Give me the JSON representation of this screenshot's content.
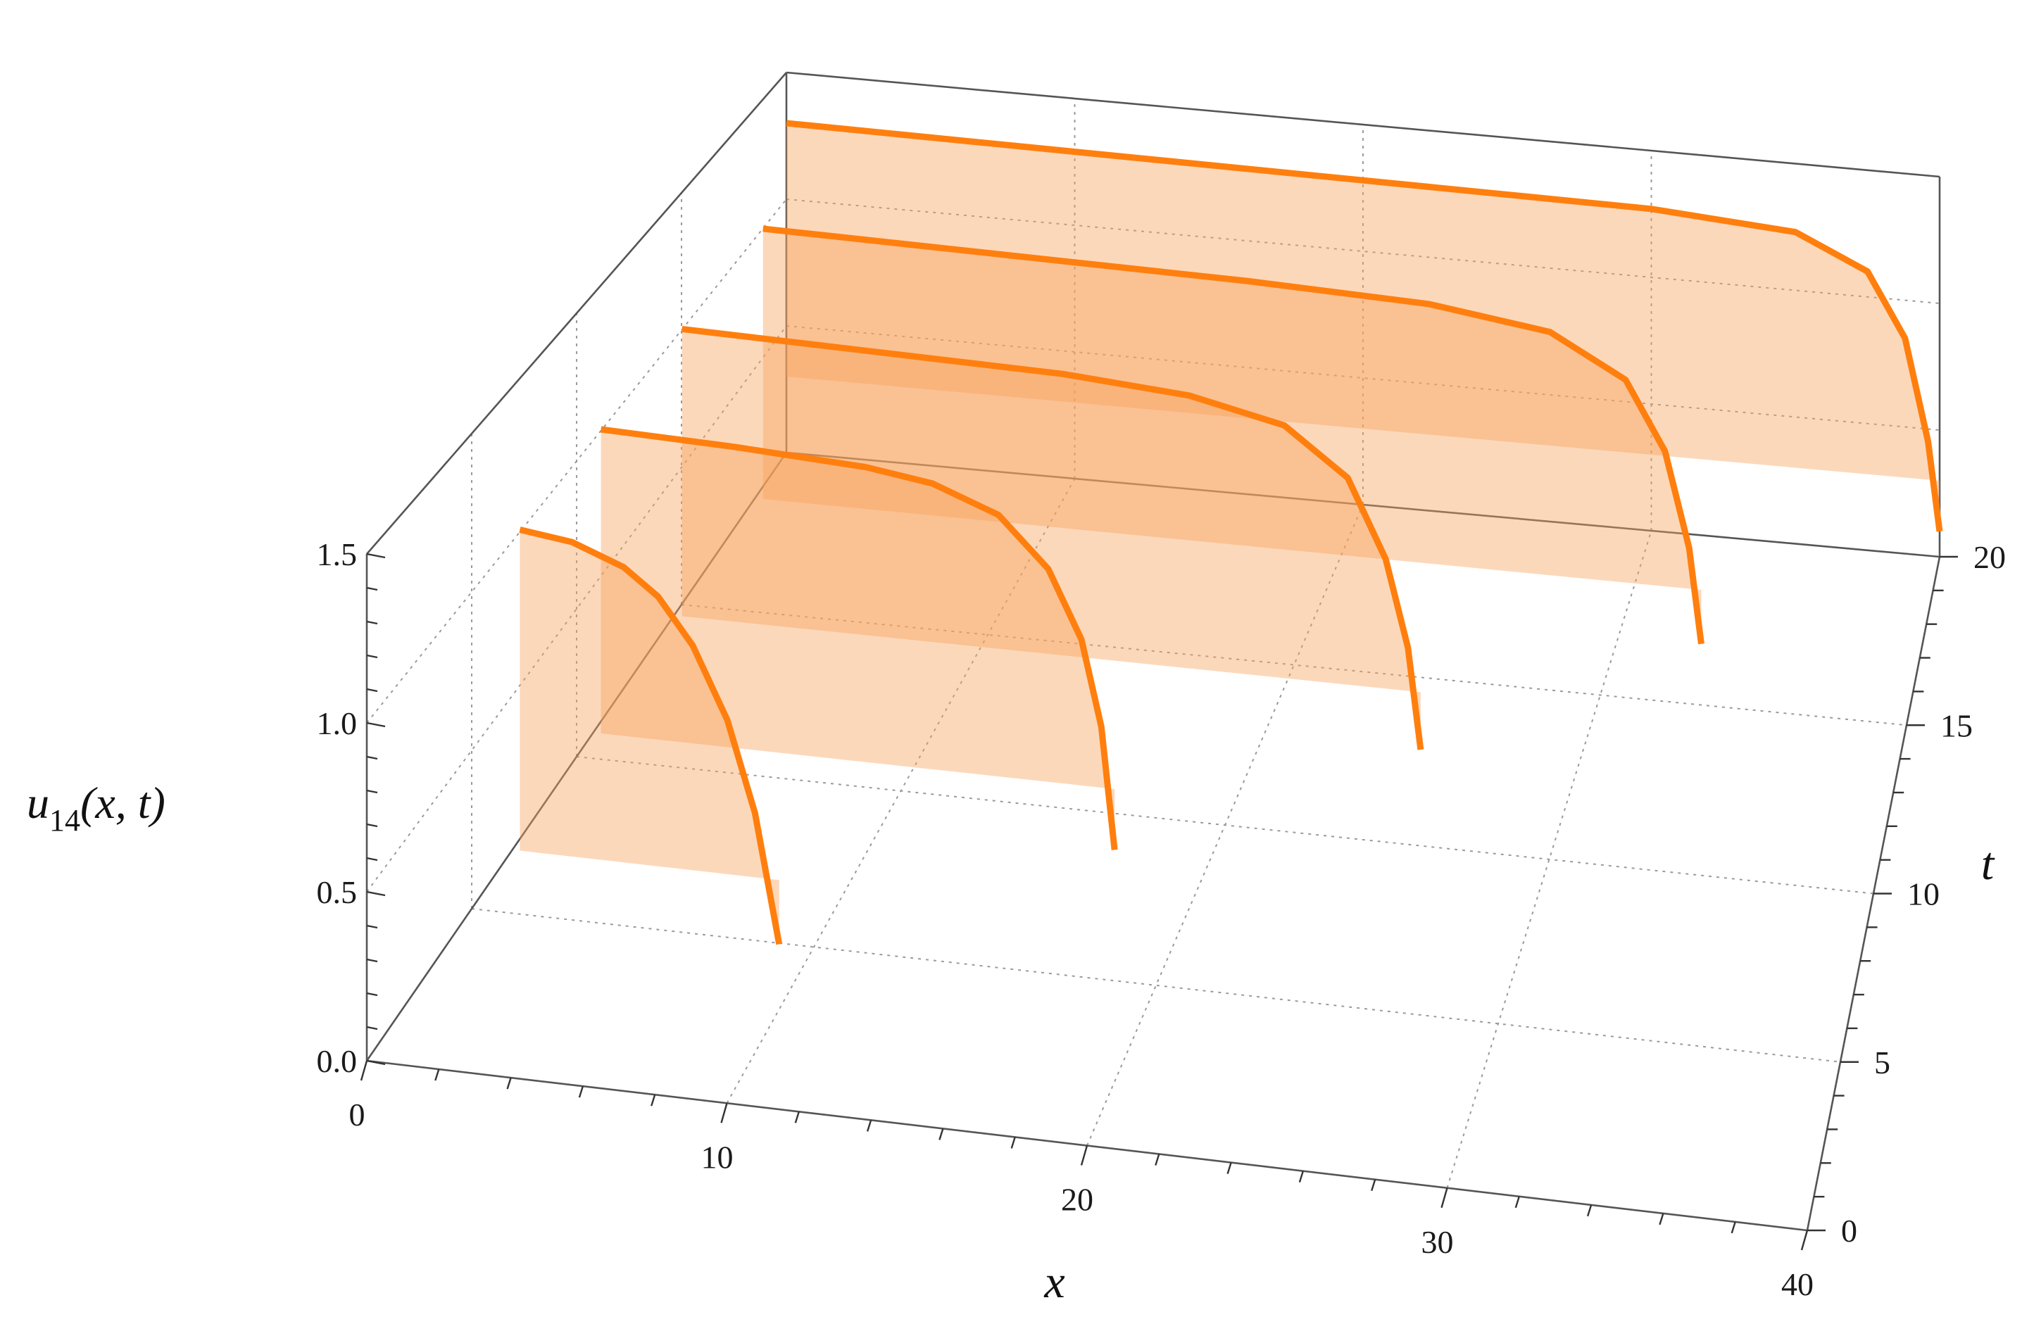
{
  "chart_data": {
    "type": "3d-line",
    "x_axis": {
      "label": "x",
      "range": [
        0,
        40
      ],
      "ticks": [
        "0",
        "10",
        "20",
        "30",
        "40"
      ]
    },
    "t_axis": {
      "label": "t",
      "range": [
        0,
        20
      ],
      "ticks": [
        "0",
        "5",
        "10",
        "15",
        "20"
      ]
    },
    "u_axis": {
      "label_base": "u",
      "label_sub": "14",
      "label_args": "(x, t)",
      "range": [
        0,
        1.5
      ],
      "ticks": [
        "0.0",
        "0.5",
        "1.0",
        "1.5"
      ]
    },
    "grid": true,
    "box": true,
    "filling": "to-axis",
    "colors": {
      "line": "#ff7f0e",
      "fill": "#f7a35c",
      "box": "#555555",
      "grid": "#9a9a9a"
    },
    "series": [
      {
        "t": 4,
        "x_start": 2,
        "x_end": 9.5,
        "points": [
          [
            2,
            1.3
          ],
          [
            3.5,
            1.28
          ],
          [
            5,
            1.22
          ],
          [
            6,
            1.14
          ],
          [
            7,
            1.0
          ],
          [
            8,
            0.78
          ],
          [
            8.8,
            0.5
          ],
          [
            9.5,
            0.1
          ]
        ]
      },
      {
        "t": 8,
        "x_start": 2,
        "x_end": 17.5,
        "points": [
          [
            2,
            1.3
          ],
          [
            6,
            1.29
          ],
          [
            10,
            1.27
          ],
          [
            12,
            1.24
          ],
          [
            14,
            1.16
          ],
          [
            15.5,
            1.0
          ],
          [
            16.5,
            0.78
          ],
          [
            17.1,
            0.5
          ],
          [
            17.5,
            0.1
          ]
        ]
      },
      {
        "t": 12,
        "x_start": 2,
        "x_end": 25.3,
        "points": [
          [
            2,
            1.3
          ],
          [
            8,
            1.29
          ],
          [
            14,
            1.28
          ],
          [
            18,
            1.25
          ],
          [
            21,
            1.18
          ],
          [
            23,
            1.02
          ],
          [
            24.2,
            0.75
          ],
          [
            24.9,
            0.45
          ],
          [
            25.3,
            0.1
          ]
        ]
      },
      {
        "t": 16,
        "x_start": 2,
        "x_end": 33.0,
        "points": [
          [
            2,
            1.3
          ],
          [
            10,
            1.29
          ],
          [
            18,
            1.28
          ],
          [
            24,
            1.26
          ],
          [
            28,
            1.2
          ],
          [
            30.5,
            1.05
          ],
          [
            31.8,
            0.8
          ],
          [
            32.6,
            0.45
          ],
          [
            33.0,
            0.1
          ]
        ]
      },
      {
        "t": 20,
        "x_start": 0,
        "x_end": 40.0,
        "points": [
          [
            0,
            1.3
          ],
          [
            10,
            1.29
          ],
          [
            20,
            1.28
          ],
          [
            30,
            1.27
          ],
          [
            35,
            1.23
          ],
          [
            37.5,
            1.1
          ],
          [
            38.8,
            0.85
          ],
          [
            39.6,
            0.45
          ],
          [
            40.0,
            0.1
          ]
        ]
      }
    ]
  }
}
